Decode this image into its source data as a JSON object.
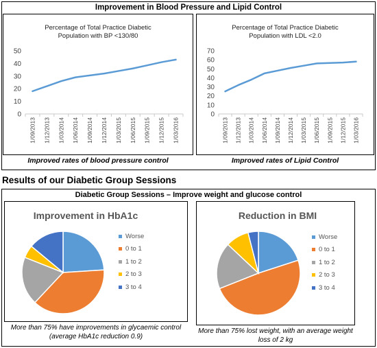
{
  "top_banner": "Improvement in Blood Pressure and Lipid Control",
  "section_heading": "Results of our Diabetic Group Sessions",
  "group_banner": "Diabetic Group Sessions – Improve weight and glucose control",
  "colors": {
    "line": "#5B9BD5",
    "worse": "#5B9BD5",
    "zero_one": "#ED7D31",
    "one_two": "#A5A5A5",
    "two_three": "#FFC000",
    "three_four": "#4472C4"
  },
  "captions": {
    "bp": "Improved rates of blood pressure control",
    "ldl": "Improved rates of Lipid Control",
    "hba1c": "More than 75% have improvements in glycaemic control (average HbA1c reduction 0.9)",
    "bmi": "More than 75%  lost weight, with an average weight loss of 2 kg"
  },
  "chart_data": [
    {
      "type": "line",
      "title": "Percentage of Total Practice Diabetic Population with BP <130/80",
      "categories": [
        "1/09/2013",
        "1/12/2013",
        "1/03/2014",
        "1/06/2014",
        "1/09/2014",
        "1/12/2014",
        "1/03/2015",
        "1/06/2015",
        "1/09/2015",
        "1/12/2015",
        "1/03/2016"
      ],
      "values": [
        18,
        22,
        26,
        29,
        30.5,
        32,
        34,
        36,
        38.5,
        41,
        43
      ],
      "yticks": [
        "0",
        "10",
        "20",
        "30",
        "40",
        "50"
      ],
      "ylim": [
        0,
        50
      ]
    },
    {
      "type": "line",
      "title": "Percentage of Total Practice Diabetic Population with LDL <2.0",
      "categories": [
        "1/09/2013",
        "1/12/2013",
        "1/03/2014",
        "1/06/2014",
        "1/09/2014",
        "1/12/2014",
        "1/03/2015",
        "1/06/2015",
        "1/09/2015",
        "1/12/2015",
        "1/03/2016"
      ],
      "values": [
        25,
        32,
        38,
        45,
        48,
        51,
        53.5,
        56,
        56.5,
        57,
        58
      ],
      "yticks": [
        "0",
        "10",
        "20",
        "30",
        "40",
        "50",
        "60",
        "70"
      ],
      "ylim": [
        0,
        70
      ]
    },
    {
      "type": "pie",
      "title": "Improvement in HbA1c",
      "labels": [
        "Worse",
        "0 to 1",
        "1 to 2",
        "2 to 3",
        "3 to 4"
      ],
      "values": [
        24,
        38,
        19,
        5,
        14
      ],
      "legend": "right"
    },
    {
      "type": "pie",
      "title": "Reduction in BMI",
      "labels": [
        "Worse",
        "0 to 1",
        "1 to 2",
        "2 to 3",
        "3 to 4"
      ],
      "values": [
        20,
        49,
        18,
        9,
        4
      ],
      "legend": "right"
    }
  ]
}
